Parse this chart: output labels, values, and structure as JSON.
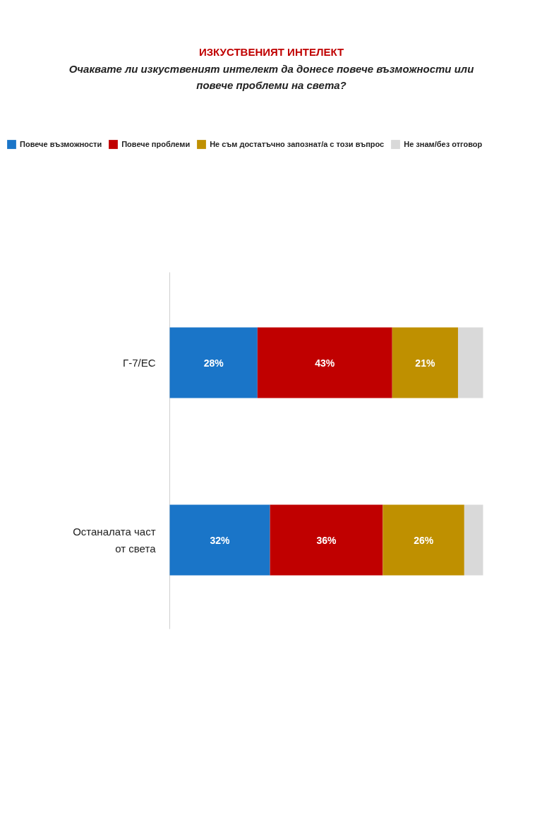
{
  "chart_data": {
    "type": "bar",
    "orientation": "horizontal",
    "stacked": true,
    "title": "ИЗКУСТВЕНИЯТ ИНТЕЛЕКТ",
    "subtitle": "Очаквате ли изкуственият интелект да донесе повече възможности или повече проблеми на света?",
    "categories": [
      "Г-7/ЕС",
      "Останалата част от света"
    ],
    "series": [
      {
        "name": "Повече възможности",
        "color": "#1a75c8",
        "values": [
          28,
          32
        ],
        "value_labels": [
          "28%",
          "32%"
        ]
      },
      {
        "name": "Повече проблеми",
        "color": "#c00000",
        "values": [
          43,
          36
        ],
        "value_labels": [
          "43%",
          "36%"
        ]
      },
      {
        "name": "Не съм достатъчно запознат/а с този въпрос",
        "color": "#bf9000",
        "values": [
          21,
          26
        ],
        "value_labels": [
          "21%",
          "26%"
        ]
      },
      {
        "name": "Не знам/без отговор",
        "color": "#d9d9d9",
        "values": [
          8,
          6
        ],
        "value_labels": [
          null,
          null
        ]
      }
    ],
    "xlim": [
      0,
      100
    ],
    "tick_labels": "y",
    "grid": false,
    "legend": "top"
  }
}
